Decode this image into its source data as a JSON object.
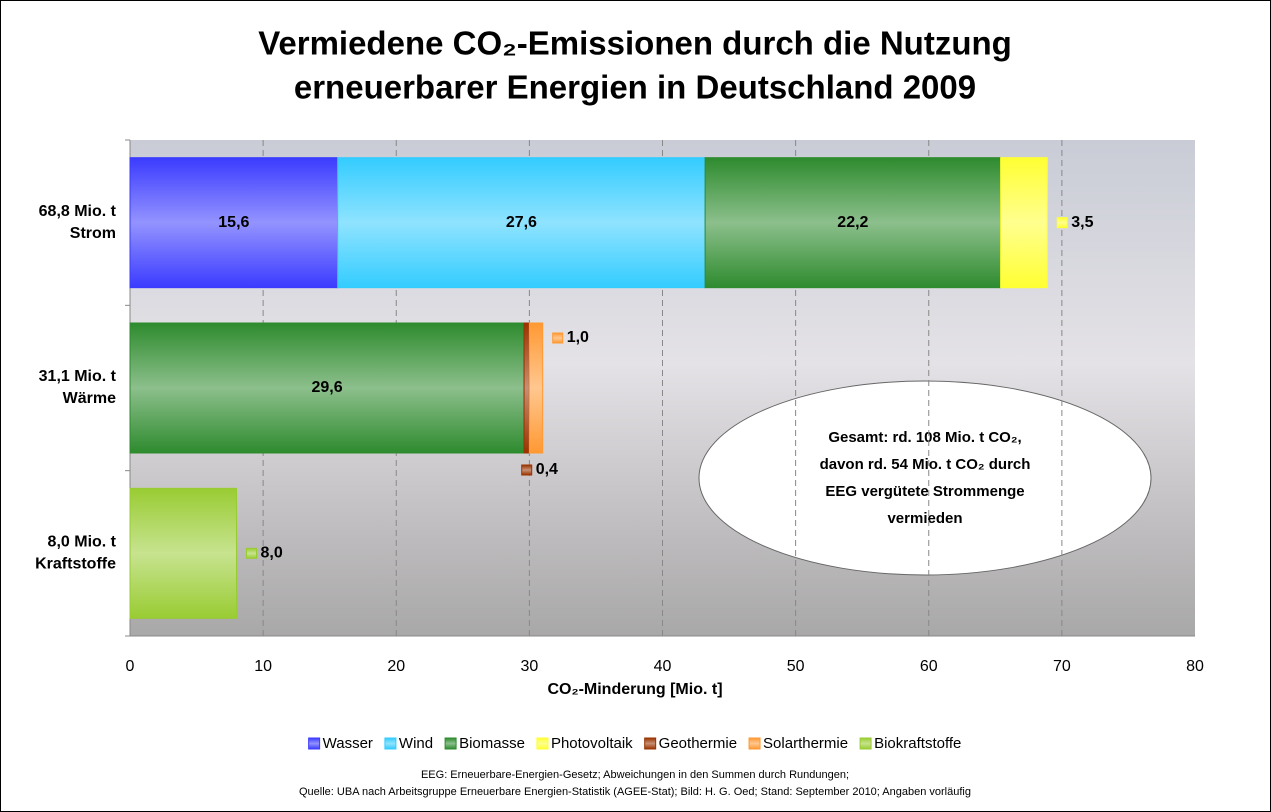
{
  "chart_data": {
    "type": "stacked-barh",
    "title": [
      "Vermiedene CO₂-Emissionen durch die Nutzung",
      "erneuerbarer Energien in Deutschland 2009"
    ],
    "categories": [
      "Strom",
      "Wärme",
      "Kraftstoffe"
    ],
    "totals": [
      68.8,
      31.1,
      8.0
    ],
    "total_labels": [
      "68,8 Mio. t",
      "31,1 Mio. t",
      "8,0 Mio. t"
    ],
    "series": [
      {
        "name": "Wasser",
        "color": "#3b3bff",
        "values": [
          15.6,
          null,
          null
        ],
        "value_labels": [
          "15,6",
          null,
          null
        ]
      },
      {
        "name": "Wind",
        "color": "#33ccff",
        "values": [
          27.6,
          null,
          null
        ],
        "value_labels": [
          "27,6",
          null,
          null
        ]
      },
      {
        "name": "Biomasse",
        "color": "#2e8b2e",
        "values": [
          22.2,
          29.6,
          null
        ],
        "value_labels": [
          "22,2",
          "29,6",
          null
        ]
      },
      {
        "name": "Photovoltaik",
        "color": "#ffff33",
        "values": [
          3.5,
          null,
          null
        ],
        "value_labels": [
          "3,5",
          null,
          null
        ]
      },
      {
        "name": "Geothermie",
        "color": "#993300",
        "values": [
          null,
          0.4,
          null
        ],
        "value_labels": [
          null,
          "0,4",
          null
        ]
      },
      {
        "name": "Solarthermie",
        "color": "#ff9933",
        "values": [
          null,
          1.0,
          null
        ],
        "value_labels": [
          null,
          "1,0",
          null
        ]
      },
      {
        "name": "Biokraftstoffe",
        "color": "#99cc33",
        "values": [
          null,
          null,
          8.0
        ],
        "value_labels": [
          null,
          null,
          "8,0"
        ]
      }
    ],
    "xlabel": "CO₂-Minderung  [Mio. t]",
    "xlim": [
      0,
      80
    ],
    "xticks": [
      0,
      10,
      20,
      30,
      40,
      50,
      60,
      70,
      80
    ],
    "grid": true,
    "annotation": [
      "Gesamt: rd. 108 Mio. t CO₂,",
      "davon rd. 54 Mio. t CO₂ durch",
      "EEG vergütete Strommenge",
      "vermieden"
    ],
    "footnote": [
      "EEG: Erneuerbare-Energien-Gesetz; Abweichungen in den Summen durch Rundungen;",
      "Quelle: UBA nach Arbeitsgruppe Erneuerbare Energien-Statistik (AGEE-Stat); Bild: H. G. Oed; Stand: September 2010; Angaben vorläufig"
    ]
  }
}
